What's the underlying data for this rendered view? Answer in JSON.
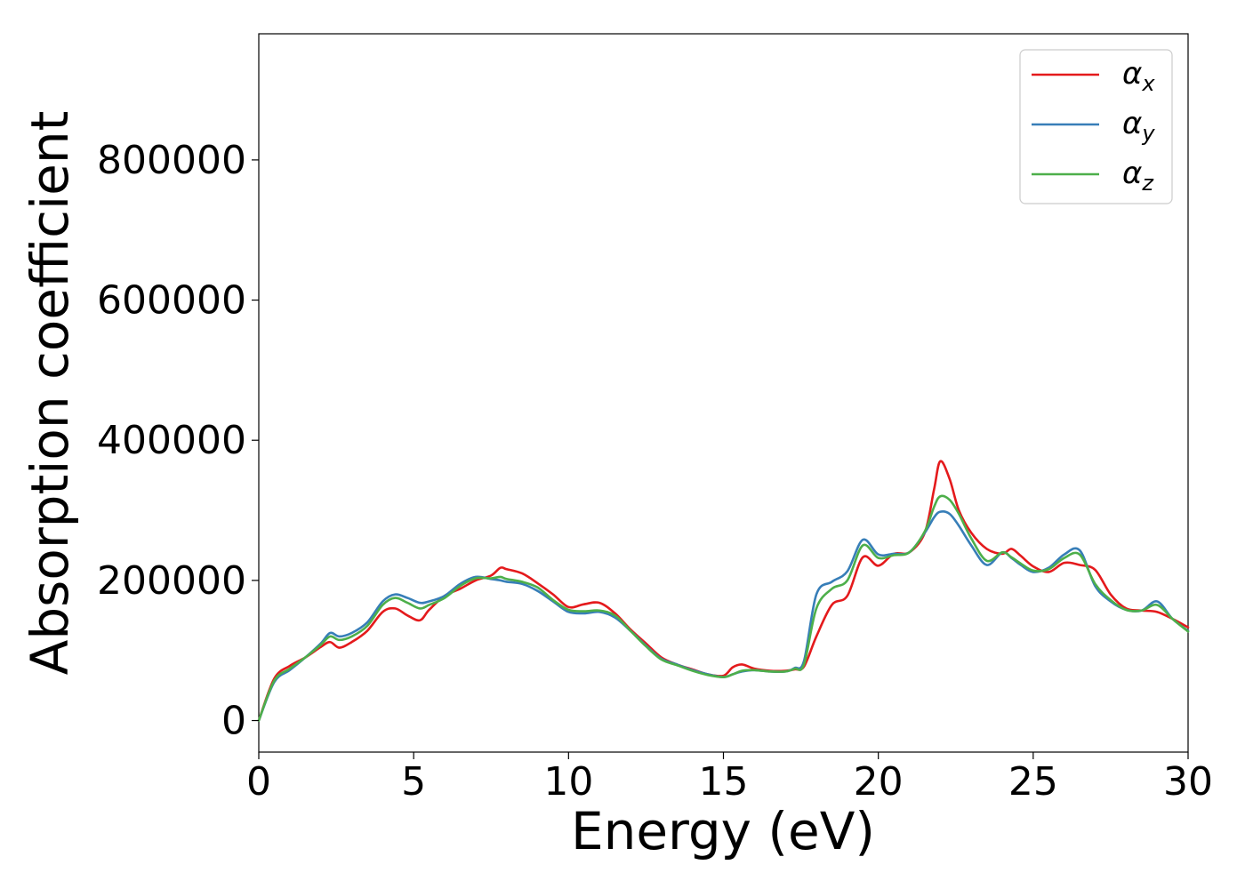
{
  "chart_data": {
    "type": "line",
    "title": "",
    "xlabel": "Energy (eV)",
    "ylabel": "Absorption coefficient",
    "xlim": [
      0,
      30
    ],
    "ylim": [
      -45000,
      980000
    ],
    "xticks": [
      0,
      5,
      10,
      15,
      20,
      25,
      30
    ],
    "yticks": [
      0,
      200000,
      400000,
      600000,
      800000
    ],
    "grid": false,
    "legend_position": "top-right",
    "series": [
      {
        "name": "α_x",
        "label_base": "α",
        "label_sub": "x",
        "color": "#e41a1c",
        "x": [
          0,
          0.5,
          1,
          1.5,
          2,
          2.3,
          2.6,
          3,
          3.5,
          4,
          4.4,
          4.8,
          5.2,
          5.5,
          6,
          6.5,
          7,
          7.5,
          7.8,
          8,
          8.5,
          9,
          9.5,
          10,
          10.5,
          11,
          11.5,
          12,
          12.5,
          13,
          13.5,
          14,
          14.5,
          15,
          15.3,
          15.6,
          16,
          16.5,
          17,
          17.3,
          17.6,
          18,
          18.5,
          19,
          19.5,
          20,
          20.5,
          21,
          21.5,
          21.8,
          22,
          22.3,
          22.6,
          23,
          23.5,
          24,
          24.3,
          24.6,
          25,
          25.5,
          26,
          26.5,
          27,
          27.5,
          28,
          28.5,
          29,
          29.5,
          30
        ],
        "y": [
          0,
          60000,
          78000,
          90000,
          105000,
          112000,
          104000,
          112000,
          128000,
          155000,
          160000,
          150000,
          143000,
          158000,
          178000,
          188000,
          200000,
          207000,
          218000,
          216000,
          210000,
          196000,
          180000,
          162000,
          166000,
          168000,
          153000,
          130000,
          110000,
          90000,
          80000,
          73000,
          66000,
          64000,
          76000,
          80000,
          74000,
          71000,
          71000,
          73000,
          77000,
          120000,
          165000,
          178000,
          233000,
          221000,
          238000,
          240000,
          268000,
          330000,
          370000,
          345000,
          300000,
          268000,
          245000,
          238000,
          245000,
          235000,
          220000,
          212000,
          225000,
          222000,
          215000,
          180000,
          160000,
          157000,
          155000,
          145000,
          133000
        ]
      },
      {
        "name": "α_y",
        "label_base": "α",
        "label_sub": "y",
        "color": "#377eb8",
        "x": [
          0,
          0.5,
          1,
          1.5,
          2,
          2.3,
          2.6,
          3,
          3.5,
          4,
          4.4,
          4.8,
          5.2,
          5.5,
          6,
          6.5,
          7,
          7.5,
          7.8,
          8,
          8.5,
          9,
          9.5,
          10,
          10.5,
          11,
          11.5,
          12,
          12.5,
          13,
          13.5,
          14,
          14.5,
          15,
          15.3,
          15.6,
          16,
          16.5,
          17,
          17.3,
          17.6,
          18,
          18.5,
          19,
          19.5,
          20,
          20.5,
          21,
          21.5,
          21.8,
          22,
          22.3,
          22.6,
          23,
          23.5,
          24,
          24.3,
          24.6,
          25,
          25.5,
          26,
          26.5,
          27,
          27.5,
          28,
          28.5,
          29,
          29.5,
          30
        ],
        "y": [
          0,
          55000,
          72000,
          90000,
          110000,
          125000,
          120000,
          125000,
          140000,
          170000,
          180000,
          175000,
          168000,
          170000,
          178000,
          195000,
          205000,
          202000,
          200000,
          198000,
          195000,
          185000,
          170000,
          155000,
          153000,
          155000,
          147000,
          128000,
          107000,
          88000,
          80000,
          72000,
          66000,
          62000,
          66000,
          70000,
          72000,
          70000,
          70000,
          75000,
          85000,
          180000,
          198000,
          213000,
          258000,
          237000,
          238000,
          240000,
          268000,
          290000,
          298000,
          295000,
          278000,
          250000,
          222000,
          240000,
          232000,
          222000,
          212000,
          218000,
          237000,
          243000,
          192000,
          170000,
          158000,
          157000,
          170000,
          145000,
          128000
        ]
      },
      {
        "name": "α_z",
        "label_base": "α",
        "label_sub": "z",
        "color": "#4daf4a",
        "x": [
          0,
          0.5,
          1,
          1.5,
          2,
          2.3,
          2.6,
          3,
          3.5,
          4,
          4.4,
          4.8,
          5.2,
          5.5,
          6,
          6.5,
          7,
          7.5,
          7.8,
          8,
          8.5,
          9,
          9.5,
          10,
          10.5,
          11,
          11.5,
          12,
          12.5,
          13,
          13.5,
          14,
          14.5,
          15,
          15.3,
          15.6,
          16,
          16.5,
          17,
          17.3,
          17.6,
          18,
          18.5,
          19,
          19.5,
          20,
          20.5,
          21,
          21.5,
          21.8,
          22,
          22.3,
          22.6,
          23,
          23.5,
          24,
          24.3,
          24.6,
          25,
          25.5,
          26,
          26.5,
          27,
          27.5,
          28,
          28.5,
          29,
          29.5,
          30
        ],
        "y": [
          0,
          57000,
          74000,
          90000,
          108000,
          120000,
          115000,
          120000,
          135000,
          165000,
          175000,
          168000,
          160000,
          165000,
          175000,
          192000,
          203000,
          203000,
          205000,
          202000,
          198000,
          190000,
          172000,
          158000,
          156000,
          157000,
          150000,
          128000,
          106000,
          87000,
          79000,
          71000,
          65000,
          62000,
          66000,
          71000,
          72000,
          70000,
          70000,
          74000,
          80000,
          160000,
          188000,
          200000,
          250000,
          232000,
          236000,
          240000,
          270000,
          305000,
          320000,
          315000,
          295000,
          260000,
          228000,
          240000,
          233000,
          224000,
          214000,
          216000,
          232000,
          237000,
          195000,
          172000,
          158000,
          157000,
          165000,
          145000,
          127000
        ]
      }
    ]
  }
}
